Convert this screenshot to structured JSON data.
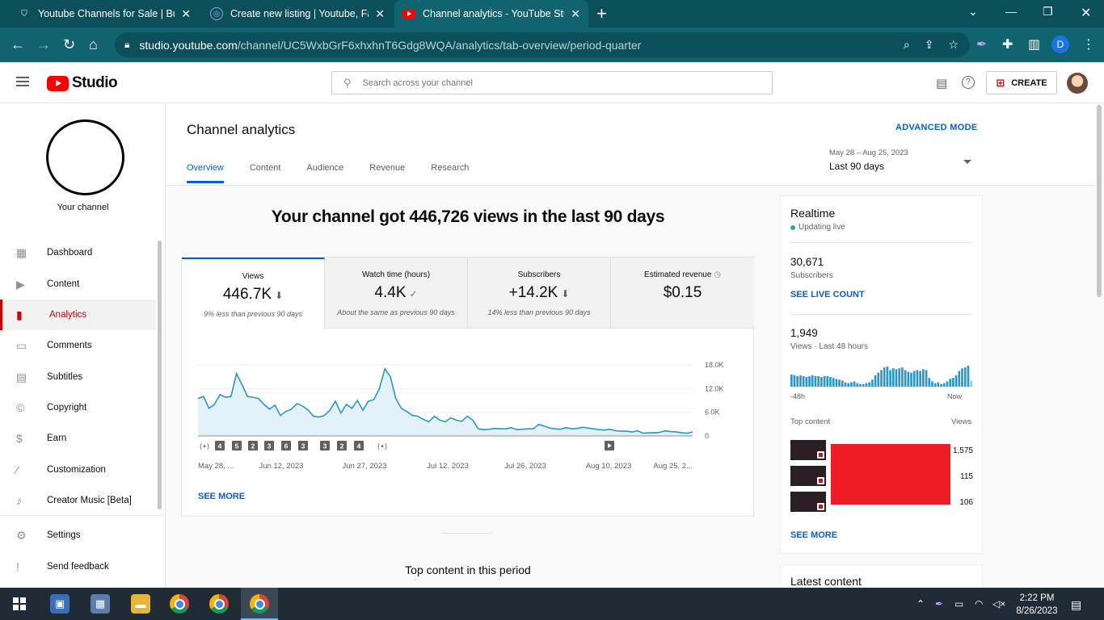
{
  "browser": {
    "tabs": [
      {
        "label": "Youtube Channels for Sale | Buy &",
        "icon": "shield-icon"
      },
      {
        "label": "Create new listing | Youtube, Face",
        "icon": "globe-icon"
      },
      {
        "label": "Channel analytics - YouTube Studio",
        "icon": "youtube-icon"
      }
    ],
    "url_host": "studio.youtube.com",
    "url_path": "/channel/UC5WxbGrF6xhxhnT6Gdg8WQA/analytics/tab-overview/period-quarter",
    "profile_letter": "D"
  },
  "header": {
    "logo_text": "Studio",
    "search_placeholder": "Search across your channel",
    "create_label": "CREATE"
  },
  "sidebar": {
    "channel_label": "Your channel",
    "items": [
      {
        "label": "Dashboard",
        "icon": "dashboard-icon"
      },
      {
        "label": "Content",
        "icon": "content-icon"
      },
      {
        "label": "Analytics",
        "icon": "analytics-icon",
        "active": true
      },
      {
        "label": "Comments",
        "icon": "comments-icon"
      },
      {
        "label": "Subtitles",
        "icon": "subtitles-icon"
      },
      {
        "label": "Copyright",
        "icon": "copyright-icon"
      },
      {
        "label": "Earn",
        "icon": "dollar-icon"
      },
      {
        "label": "Customization",
        "icon": "magic-wand-icon"
      },
      {
        "label": "Creator Music [Beta]",
        "icon": "music-icon"
      },
      {
        "label": "Settings",
        "icon": "gear-icon"
      },
      {
        "label": "Send feedback",
        "icon": "feedback-icon"
      }
    ]
  },
  "main": {
    "title": "Channel analytics",
    "advanced_mode": "ADVANCED MODE",
    "tabs": [
      "Overview",
      "Content",
      "Audience",
      "Revenue",
      "Research"
    ],
    "period_range": "May 28 – Aug 25, 2023",
    "period_label": "Last 90 days",
    "headline": "Your channel got 446,726 views in the last 90 days",
    "metrics": [
      {
        "name": "Views",
        "value": "446.7K",
        "note": "9% less than previous 90 days",
        "badge": "down"
      },
      {
        "name": "Watch time (hours)",
        "value": "4.4K",
        "note": "About the same as previous 90 days",
        "badge": "ok"
      },
      {
        "name": "Subscribers",
        "value": "+14.2K",
        "note": "14% less than previous 90 days",
        "badge": "down"
      },
      {
        "name": "Estimated revenue",
        "value": "$0.15",
        "note": "",
        "badge": "clock"
      }
    ],
    "see_more": "SEE MORE",
    "top_content_title": "Top content in this period"
  },
  "chart_data": {
    "type": "area",
    "title": "",
    "xlabel": "",
    "ylabel": "",
    "ylim": [
      0,
      18000
    ],
    "yticks": [
      "18.0K",
      "12.0K",
      "6.0K",
      "0"
    ],
    "xtick_labels": [
      "May 28, ...",
      "Jun 12, 2023",
      "Jun 27, 2023",
      "Jul 12, 2023",
      "Jul 26, 2023",
      "Aug 10, 2023",
      "Aug 25, 2..."
    ],
    "color": "#2b96c8",
    "markers": [
      "live",
      "4",
      "5",
      "2",
      "3",
      "6",
      "3",
      "3",
      "2",
      "4",
      "live",
      "video"
    ],
    "values": [
      9500,
      10000,
      7000,
      8000,
      10500,
      9800,
      10000,
      15800,
      13000,
      10000,
      9800,
      9500,
      8000,
      6800,
      7800,
      5200,
      6200,
      6800,
      8200,
      7600,
      6600,
      5000,
      4800,
      5200,
      6500,
      8800,
      5800,
      8000,
      7000,
      9000,
      6500,
      8800,
      9200,
      12000,
      17000,
      15000,
      9500,
      7000,
      6200,
      5200,
      5000,
      4200,
      3600,
      5000,
      4000,
      3600,
      4600,
      4000,
      3700,
      5000,
      4000,
      1800,
      1600,
      1700,
      1900,
      1800,
      1800,
      2100,
      1600,
      1700,
      1800,
      1800,
      2900,
      2500,
      2000,
      1800,
      1700,
      2100,
      1800,
      1900,
      2200,
      2000,
      1800,
      1600,
      1500,
      1700,
      1300,
      1200,
      1200,
      1000,
      1300,
      700,
      800,
      800,
      900,
      1300,
      1100,
      1000,
      800,
      700,
      1000
    ]
  },
  "realtime": {
    "title": "Realtime",
    "status": "Updating live",
    "subscribers_value": "30,671",
    "subscribers_label": "Subscribers",
    "live_count": "SEE LIVE COUNT",
    "views_value": "1,949",
    "views_label": "Views · Last 48 hours",
    "axis_start": "-48h",
    "axis_end": "Now",
    "bars": [
      14,
      13,
      12,
      13,
      12,
      11,
      12,
      13,
      12,
      12,
      11,
      12,
      12,
      11,
      10,
      9,
      8,
      7,
      5,
      4,
      5,
      6,
      4,
      3,
      3,
      4,
      5,
      8,
      13,
      16,
      19,
      22,
      23,
      19,
      21,
      20,
      21,
      22,
      19,
      17,
      16,
      18,
      19,
      18,
      20,
      19,
      10,
      6,
      4,
      5,
      3,
      4,
      6,
      9,
      10,
      13,
      18,
      21,
      22,
      24,
      7
    ],
    "top_content_label": "Top content",
    "views_col_label": "Views",
    "top_content": [
      {
        "views": "1,575"
      },
      {
        "views": "115"
      },
      {
        "views": "106"
      }
    ],
    "see_more": "SEE MORE"
  },
  "latest": {
    "title": "Latest content"
  },
  "taskbar": {
    "time": "2:22 PM",
    "date": "8/26/2023"
  }
}
